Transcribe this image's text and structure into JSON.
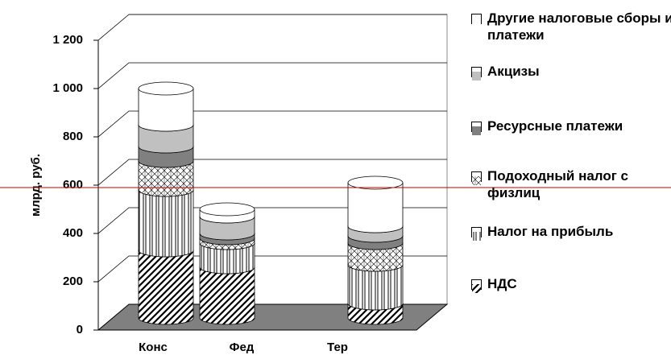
{
  "chart_data": {
    "type": "cylinder3d",
    "y_axis_label": "млрд. руб.",
    "categories": [
      "Конс",
      "Фед",
      "Тер"
    ],
    "ylim": [
      0,
      1200
    ],
    "yticks": [
      0,
      200,
      400,
      600,
      800,
      {
        "value": 1000,
        "label": "1 000"
      },
      {
        "value": 1200,
        "label": "1 200"
      }
    ],
    "grid": true,
    "series": [
      {
        "name": "НДС",
        "color": "#ffffff",
        "values": [
          280,
          210,
          60
        ]
      },
      {
        "name": "Налог на прибыль",
        "color": "#ffffff",
        "values": [
          250,
          100,
          160
        ]
      },
      {
        "name": "Подоходный налог с физлиц",
        "color": "#ffffff",
        "values": [
          120,
          20,
          90
        ]
      },
      {
        "name": "Ресурсные платежи",
        "color": "#808080",
        "values": [
          60,
          20,
          30
        ]
      },
      {
        "name": "Акцизы",
        "color": "#c0c0c0",
        "values": [
          90,
          70,
          40
        ]
      },
      {
        "name": "Другие налоговые сборы и платежи",
        "color": "#ffffff",
        "values": [
          150,
          30,
          180
        ]
      }
    ]
  }
}
